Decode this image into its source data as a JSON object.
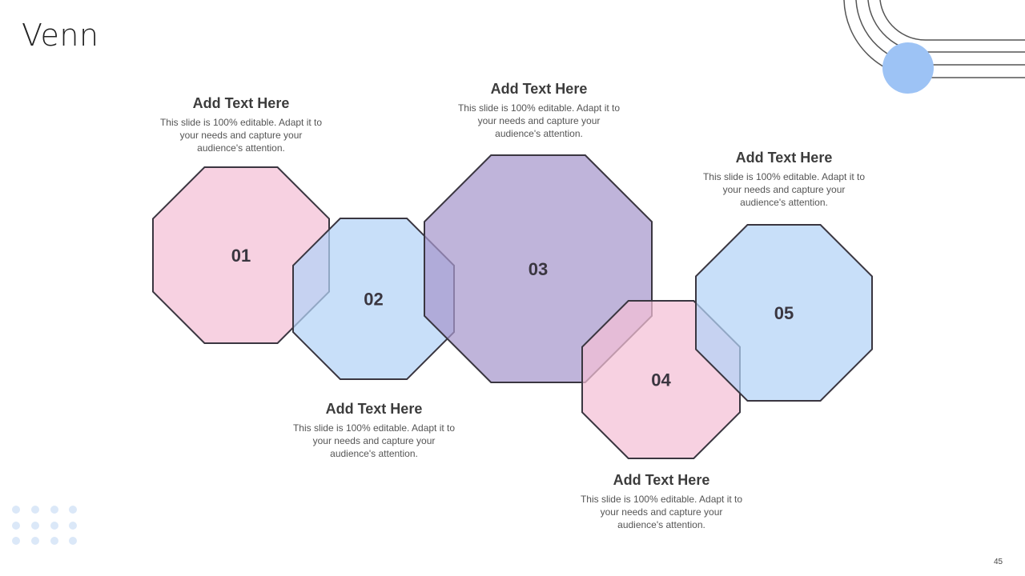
{
  "title": "Venn",
  "items": [
    {
      "number": "01",
      "heading": "Add Text Here",
      "body": "This slide is 100% editable. Adapt it to your needs and capture your audience's attention.",
      "color": "#f4bfd6"
    },
    {
      "number": "02",
      "heading": "Add Text Here",
      "body": "This slide is 100% editable. Adapt it to your needs and capture your audience's attention.",
      "color": "#b3d3f6"
    },
    {
      "number": "03",
      "heading": "Add Text Here",
      "body": "This slide is 100% editable. Adapt it to your needs and capture your audience's attention.",
      "color": "#a697cc"
    },
    {
      "number": "04",
      "heading": "Add Text Here",
      "body": "This slide is 100% editable. Adapt it to your needs and capture your audience's attention.",
      "color": "#f4bfd6"
    },
    {
      "number": "05",
      "heading": "Add Text Here",
      "body": "This slide is 100% editable. Adapt it to your needs and capture your audience's attention.",
      "color": "#b3d3f6"
    }
  ],
  "page_number": "45",
  "accent_color": "#9dc3f5"
}
